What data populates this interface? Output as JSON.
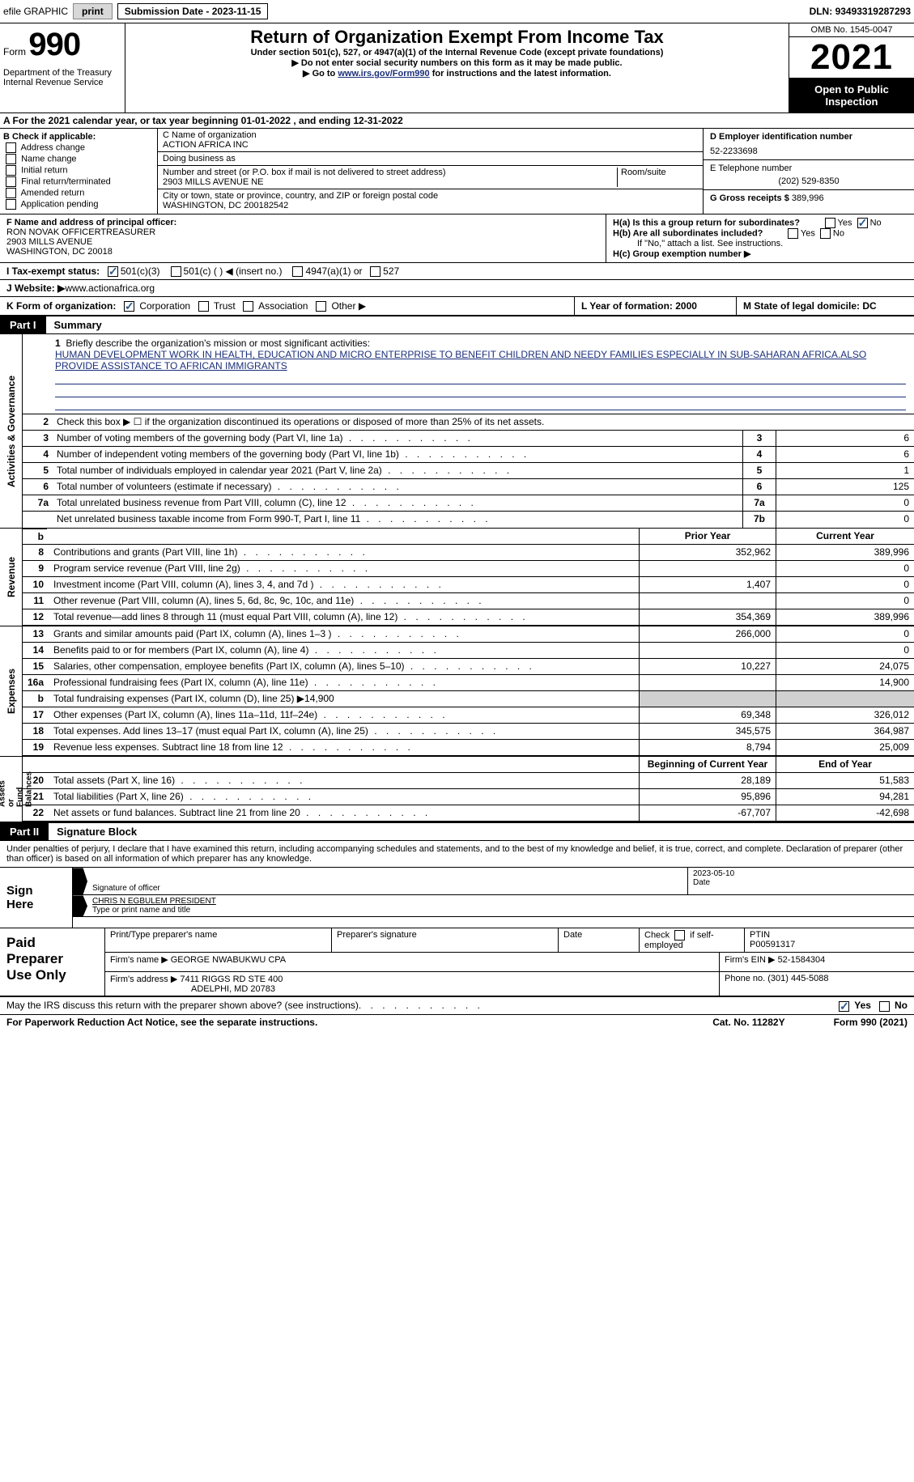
{
  "topbar": {
    "efile": "efile GRAPHIC",
    "print": "print",
    "subdate_label": "Submission Date - ",
    "subdate": "2023-11-15",
    "dln_label": "DLN: ",
    "dln": "93493319287293"
  },
  "header": {
    "form_word": "Form",
    "form_no": "990",
    "dept": "Department of the Treasury\nInternal Revenue Service",
    "title": "Return of Organization Exempt From Income Tax",
    "subtitle": "Under section 501(c), 527, or 4947(a)(1) of the Internal Revenue Code (except private foundations)",
    "inst1": "▶ Do not enter social security numbers on this form as it may be made public.",
    "inst2_pre": "▶ Go to ",
    "inst2_link": "www.irs.gov/Form990",
    "inst2_post": " for instructions and the latest information.",
    "omb": "OMB No. 1545-0047",
    "year": "2021",
    "open": "Open to Public\nInspection"
  },
  "row_a": "A For the 2021 calendar year, or tax year beginning 01-01-2022   , and ending 12-31-2022",
  "col_b": {
    "head": "B Check if applicable:",
    "items": [
      "Address change",
      "Name change",
      "Initial return",
      "Final return/terminated",
      "Amended return",
      "Application pending"
    ]
  },
  "col_c": {
    "name_label": "C Name of organization",
    "name": "ACTION AFRICA INC",
    "dba_label": "Doing business as",
    "dba": "",
    "addr_label": "Number and street (or P.O. box if mail is not delivered to street address)",
    "room_label": "Room/suite",
    "addr": "2903 MILLS AVENUE NE",
    "city_label": "City or town, state or province, country, and ZIP or foreign postal code",
    "city": "WASHINGTON, DC  200182542"
  },
  "col_d": {
    "ein_label": "D Employer identification number",
    "ein": "52-2233698",
    "phone_label": "E Telephone number",
    "phone": "(202) 529-8350",
    "gross_label": "G Gross receipts $ ",
    "gross": "389,996"
  },
  "section_f": {
    "label": "F  Name and address of principal officer:",
    "name": "RON NOVAK OFFICERTREASURER",
    "addr1": "2903 MILLS AVENUE",
    "addr2": "WASHINGTON, DC  20018"
  },
  "section_h": {
    "ha": "H(a)  Is this a group return for subordinates?",
    "hb": "H(b)  Are all subordinates included?",
    "hb_note": "If \"No,\" attach a list. See instructions.",
    "hc": "H(c)  Group exemption number ▶"
  },
  "row_i": {
    "label": "I    Tax-exempt status:",
    "opts": [
      "501(c)(3)",
      "501(c) (  ) ◀ (insert no.)",
      "4947(a)(1) or",
      "527"
    ]
  },
  "row_j": {
    "label": "J   Website: ▶  ",
    "url": "www.actionafrica.org"
  },
  "row_k": {
    "k": "K Form of organization:",
    "opts": [
      "Corporation",
      "Trust",
      "Association",
      "Other ▶"
    ],
    "l": "L Year of formation: 2000",
    "m": "M State of legal domicile: DC"
  },
  "part1": {
    "badge": "Part I",
    "title": "Summary",
    "vert_activities": "Activities & Governance",
    "vert_revenue": "Revenue",
    "vert_expenses": "Expenses",
    "vert_net": "Net Assets or\nFund Balances",
    "line1_label": "Briefly describe the organization's mission or most significant activities:",
    "line1_text": "HUMAN DEVELOPMENT WORK IN HEALTH, EDUCATION AND MICRO ENTERPRISE TO BENEFIT CHILDREN AND NEEDY FAMILIES ESPECIALLY IN SUB-SAHARAN AFRICA.ALSO PROVIDE ASSISTANCE TO AFRICAN IMMIGRANTS",
    "line2": "Check this box ▶ ☐  if the organization discontinued its operations or disposed of more than 25% of its net assets.",
    "rows_single": [
      {
        "n": "3",
        "d": "Number of voting members of the governing body (Part VI, line 1a)",
        "r": "3",
        "v": "6"
      },
      {
        "n": "4",
        "d": "Number of independent voting members of the governing body (Part VI, line 1b)",
        "r": "4",
        "v": "6"
      },
      {
        "n": "5",
        "d": "Total number of individuals employed in calendar year 2021 (Part V, line 2a)",
        "r": "5",
        "v": "1"
      },
      {
        "n": "6",
        "d": "Total number of volunteers (estimate if necessary)",
        "r": "6",
        "v": "125"
      },
      {
        "n": "7a",
        "d": "Total unrelated business revenue from Part VIII, column (C), line 12",
        "r": "7a",
        "v": "0"
      },
      {
        "n": "",
        "d": "Net unrelated business taxable income from Form 990-T, Part I, line 11",
        "r": "7b",
        "v": "0"
      }
    ],
    "prior_hdr": "Prior Year",
    "curr_hdr": "Current Year",
    "revenue_rows": [
      {
        "n": "8",
        "d": "Contributions and grants (Part VIII, line 1h)",
        "p": "352,962",
        "c": "389,996"
      },
      {
        "n": "9",
        "d": "Program service revenue (Part VIII, line 2g)",
        "p": "",
        "c": "0"
      },
      {
        "n": "10",
        "d": "Investment income (Part VIII, column (A), lines 3, 4, and 7d )",
        "p": "1,407",
        "c": "0"
      },
      {
        "n": "11",
        "d": "Other revenue (Part VIII, column (A), lines 5, 6d, 8c, 9c, 10c, and 11e)",
        "p": "",
        "c": "0"
      },
      {
        "n": "12",
        "d": "Total revenue—add lines 8 through 11 (must equal Part VIII, column (A), line 12)",
        "p": "354,369",
        "c": "389,996"
      }
    ],
    "expense_rows": [
      {
        "n": "13",
        "d": "Grants and similar amounts paid (Part IX, column (A), lines 1–3 )",
        "p": "266,000",
        "c": "0"
      },
      {
        "n": "14",
        "d": "Benefits paid to or for members (Part IX, column (A), line 4)",
        "p": "",
        "c": "0"
      },
      {
        "n": "15",
        "d": "Salaries, other compensation, employee benefits (Part IX, column (A), lines 5–10)",
        "p": "10,227",
        "c": "24,075"
      },
      {
        "n": "16a",
        "d": "Professional fundraising fees (Part IX, column (A), line 11e)",
        "p": "",
        "c": "14,900"
      },
      {
        "n": "b",
        "d": "Total fundraising expenses (Part IX, column (D), line 25) ▶14,900",
        "p": "shade",
        "c": "shade"
      },
      {
        "n": "17",
        "d": "Other expenses (Part IX, column (A), lines 11a–11d, 11f–24e)",
        "p": "69,348",
        "c": "326,012"
      },
      {
        "n": "18",
        "d": "Total expenses. Add lines 13–17 (must equal Part IX, column (A), line 25)",
        "p": "345,575",
        "c": "364,987"
      },
      {
        "n": "19",
        "d": "Revenue less expenses. Subtract line 18 from line 12",
        "p": "8,794",
        "c": "25,009"
      }
    ],
    "begin_hdr": "Beginning of Current Year",
    "end_hdr": "End of Year",
    "net_rows": [
      {
        "n": "20",
        "d": "Total assets (Part X, line 16)",
        "p": "28,189",
        "c": "51,583"
      },
      {
        "n": "21",
        "d": "Total liabilities (Part X, line 26)",
        "p": "95,896",
        "c": "94,281"
      },
      {
        "n": "22",
        "d": "Net assets or fund balances. Subtract line 21 from line 20",
        "p": "-67,707",
        "c": "-42,698"
      }
    ]
  },
  "part2": {
    "badge": "Part II",
    "title": "Signature Block",
    "penalties": "Under penalties of perjury, I declare that I have examined this return, including accompanying schedules and statements, and to the best of my knowledge and belief, it is true, correct, and complete. Declaration of preparer (other than officer) is based on all information of which preparer has any knowledge."
  },
  "sign": {
    "label": "Sign\nHere",
    "sig_label": "Signature of officer",
    "date": "2023-05-10",
    "date_label": "Date",
    "name": "CHRIS N EGBULEM  PRESIDENT",
    "name_label": "Type or print name and title"
  },
  "preparer": {
    "label": "Paid\nPreparer\nUse Only",
    "h1": "Print/Type preparer's name",
    "h2": "Preparer's signature",
    "h3": "Date",
    "h4_pre": "Check ",
    "h4_post": " if self-employed",
    "h5": "PTIN",
    "ptin": "P00591317",
    "firm_name_label": "Firm's name      ▶ ",
    "firm_name": "GEORGE NWABUKWU CPA",
    "firm_ein_label": "Firm's EIN ▶ ",
    "firm_ein": "52-1584304",
    "firm_addr_label": "Firm's address ▶ ",
    "firm_addr1": "7411 RIGGS RD STE 400",
    "firm_addr2": "ADELPHI, MD  20783",
    "phone_label": "Phone no. ",
    "phone": "(301) 445-5088"
  },
  "footer": {
    "discuss": "May the IRS discuss this return with the preparer shown above? (see instructions)",
    "yes": "Yes",
    "no": "No",
    "paperwork": "For Paperwork Reduction Act Notice, see the separate instructions.",
    "cat": "Cat. No. 11282Y",
    "form": "Form 990 (2021)"
  }
}
